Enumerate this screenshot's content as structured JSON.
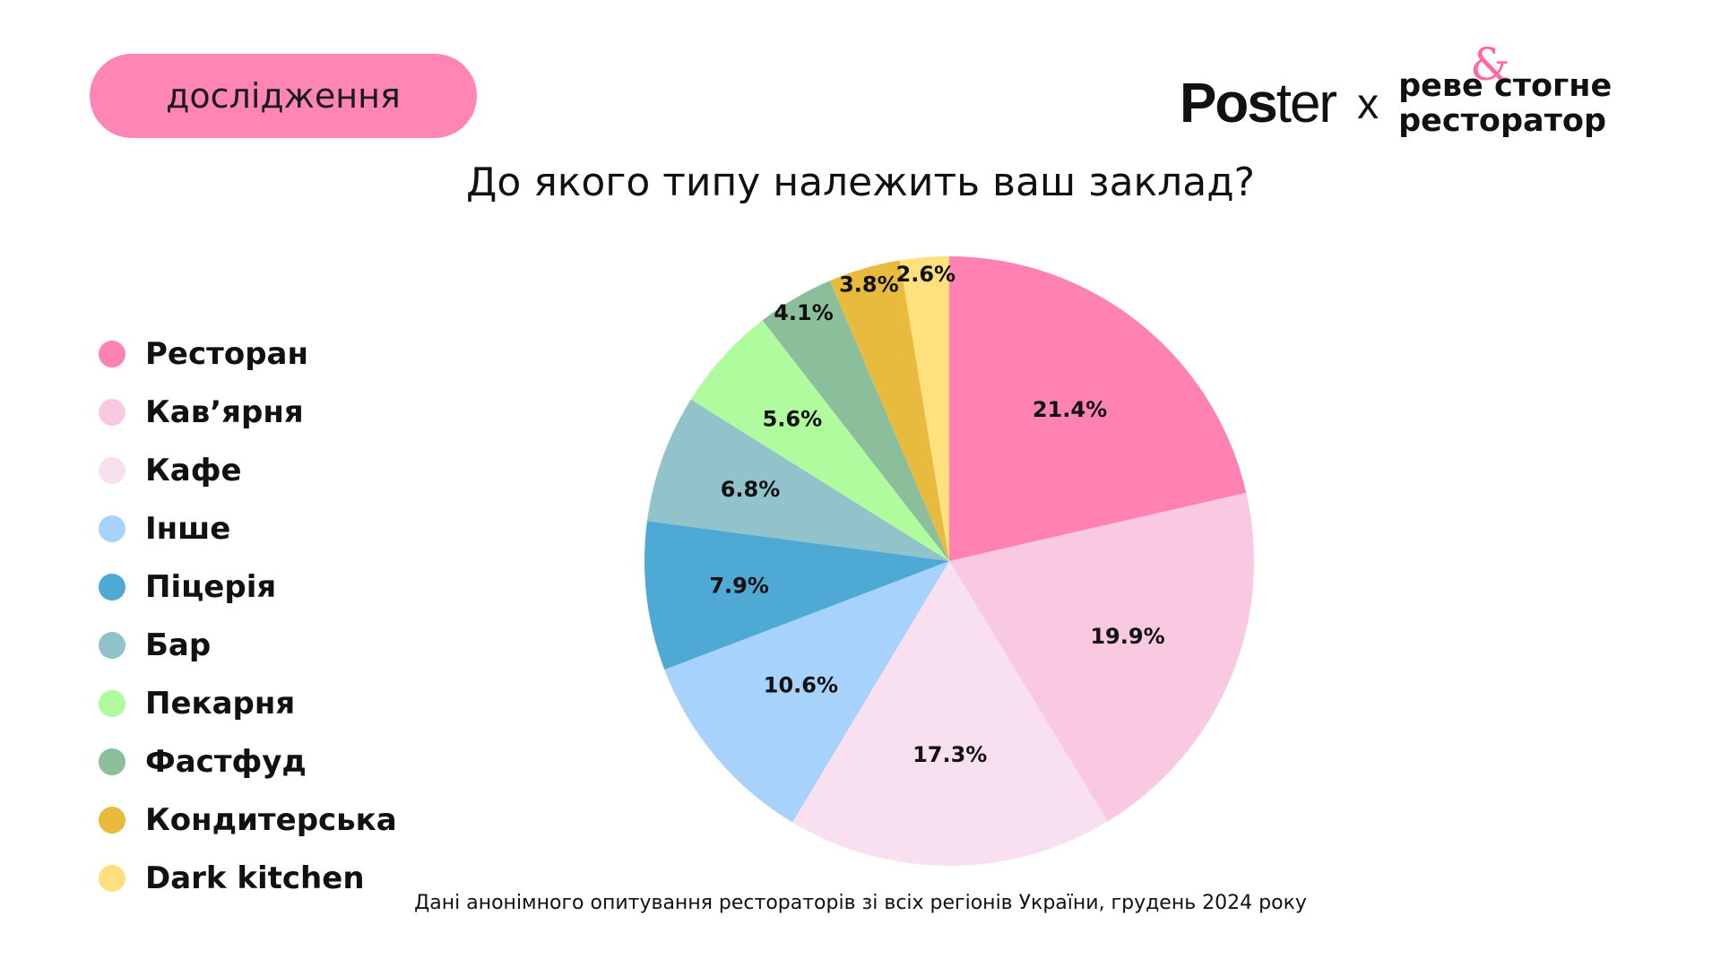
{
  "badge": {
    "label": "дослідження",
    "color": "#ff85b4"
  },
  "logos": {
    "poster_bold": "Pos",
    "poster_light": "ter",
    "separator": "x",
    "partner_line1": "реве стогне",
    "partner_line2": "ресторатор",
    "partner_symbol": "&",
    "partner_symbol_color": "#ff6aa4"
  },
  "question": "До якого типу належить ваш заклад?",
  "footnote": "Дані анонімного опитування рестораторів зі всіх регіонів України, грудень 2024 року",
  "chart_data": {
    "type": "pie",
    "title": "До якого типу належить ваш заклад?",
    "legend_position": "left",
    "start": "top",
    "direction": "clockwise",
    "slices": [
      {
        "label": "Ресторан",
        "value": 21.4,
        "display": "21.4%",
        "color": "#ff82b3"
      },
      {
        "label": "Кав’ярня",
        "value": 19.9,
        "display": "19.9%",
        "color": "#f9c8e1"
      },
      {
        "label": "Кафе",
        "value": 17.3,
        "display": "17.3%",
        "color": "#f9e0f1"
      },
      {
        "label": "Інше",
        "value": 10.6,
        "display": "10.6%",
        "color": "#a7d2fc"
      },
      {
        "label": "Піцерія",
        "value": 7.9,
        "display": "7.9%",
        "color": "#4ea9d5"
      },
      {
        "label": "Бар",
        "value": 6.8,
        "display": "6.8%",
        "color": "#92c2ca"
      },
      {
        "label": "Пекарня",
        "value": 5.6,
        "display": "5.6%",
        "color": "#affb9e"
      },
      {
        "label": "Фастфуд",
        "value": 4.1,
        "display": "4.1%",
        "color": "#8bbf9c"
      },
      {
        "label": "Кондитерська",
        "value": 3.8,
        "display": "3.8%",
        "color": "#e8ba3e"
      },
      {
        "label": "Dark kitchen",
        "value": 2.6,
        "display": "2.6%",
        "color": "#fee07c"
      }
    ]
  }
}
